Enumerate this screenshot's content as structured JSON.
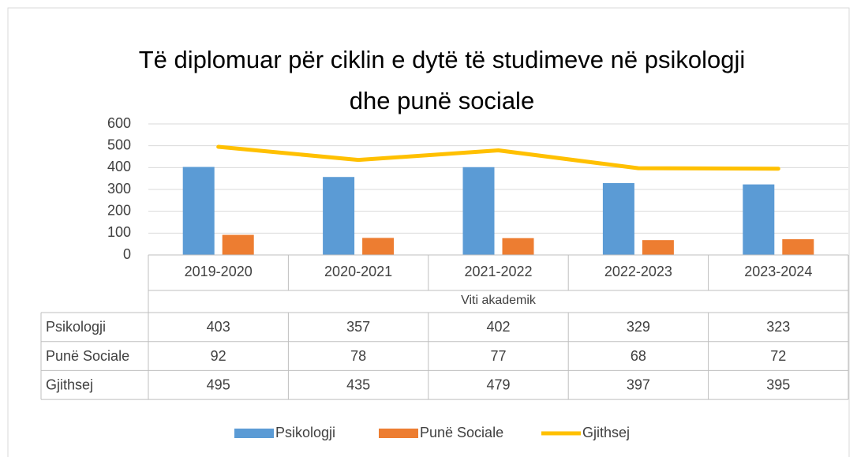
{
  "chart_data": {
    "type": "bar",
    "title": [
      "Të diplomuar për ciklin e dytë të studimeve në psikologji",
      "dhe punë sociale"
    ],
    "x_label": "Viti akademik",
    "categories": [
      "2019-2020",
      "2020-2021",
      "2021-2022",
      "2022-2023",
      "2023-2024"
    ],
    "series": [
      {
        "name": "Psikologji",
        "type": "bar",
        "color": "#5b9bd5",
        "values": [
          403,
          357,
          402,
          329,
          323
        ]
      },
      {
        "name": "Punë Sociale",
        "type": "bar",
        "color": "#ed7d31",
        "values": [
          92,
          78,
          77,
          68,
          72
        ]
      },
      {
        "name": "Gjithsej",
        "type": "line",
        "color": "#ffc000",
        "values": [
          495,
          435,
          479,
          397,
          395
        ]
      }
    ],
    "ylim": [
      0,
      600
    ],
    "yticks": [
      0,
      100,
      200,
      300,
      400,
      500,
      600
    ],
    "grid": true,
    "legend": "bottom"
  }
}
